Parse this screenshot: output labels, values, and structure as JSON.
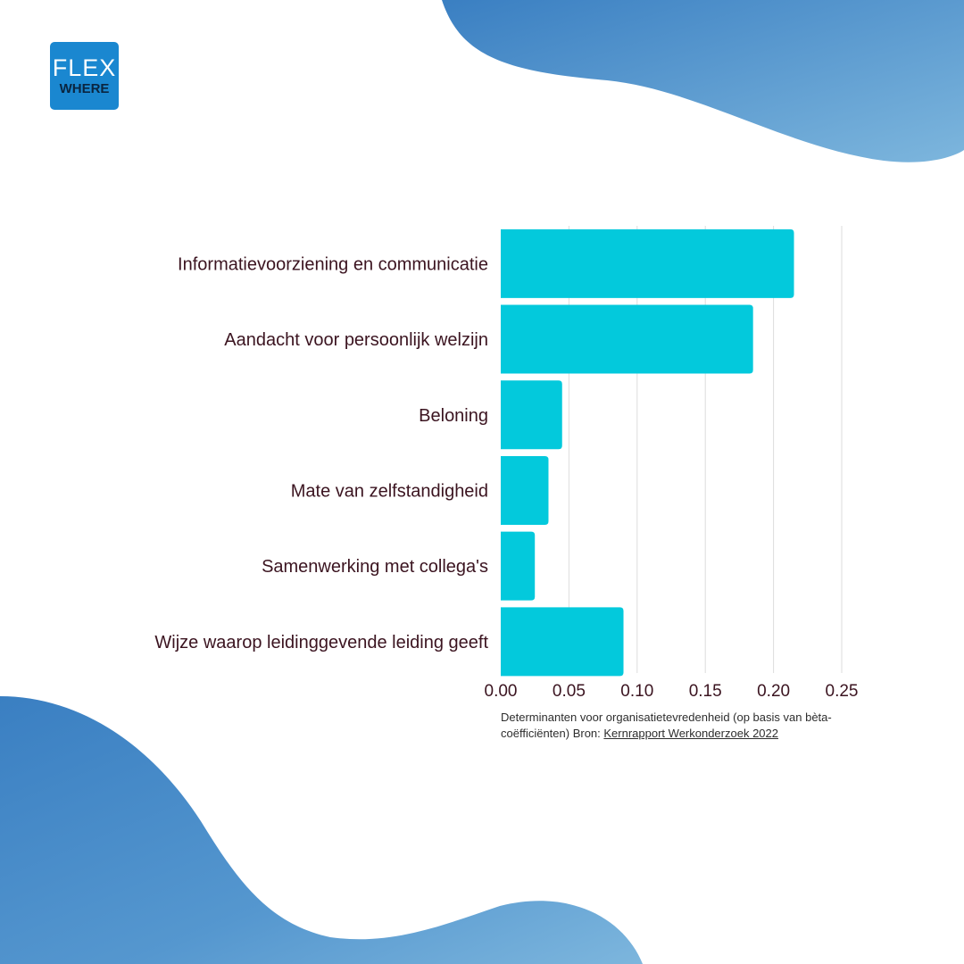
{
  "brand": {
    "logo_line1": "FLEX",
    "logo_line2": "WHERE",
    "logo_color": "#1a87d0"
  },
  "colors": {
    "bar": "#03c9dc",
    "label_text": "#3b1420",
    "gridline": "#dddddd",
    "blob_dark": "#3a7fc2",
    "blob_light": "#7db6dd"
  },
  "chart_data": {
    "type": "bar",
    "orientation": "horizontal",
    "categories": [
      "Informatievoorziening en communicatie",
      "Aandacht voor persoonlijk welzijn",
      "Beloning",
      "Mate van zelfstandigheid",
      "Samenwerking met collega's",
      "Wijze waarop leidinggevende leiding geeft"
    ],
    "values": [
      0.215,
      0.185,
      0.045,
      0.035,
      0.025,
      0.09
    ],
    "xlim": [
      0,
      0.25
    ],
    "xticks": [
      "0.00",
      "0.05",
      "0.10",
      "0.15",
      "0.20",
      "0.25"
    ],
    "grid": true
  },
  "caption": {
    "text": "Determinanten voor organisatietevredenheid (op basis van bèta-coëfficiënten) Bron: ",
    "link_text": "Kernrapport Werkonderzoek 2022"
  }
}
